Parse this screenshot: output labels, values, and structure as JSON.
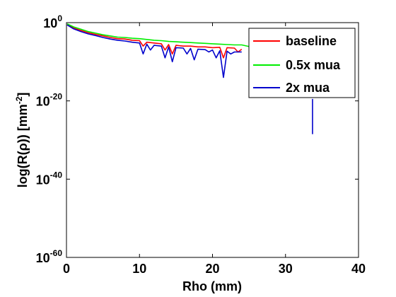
{
  "chart_data": {
    "type": "line",
    "title": "",
    "xlabel": "Rho (mm)",
    "ylabel": "log(R(ρ)) [mm",
    "ylabel_unit_exponent": "-2",
    "ylabel_close": "]",
    "xlim": [
      0,
      40
    ],
    "y_log10_lim": [
      -60,
      0
    ],
    "y_scale": "log",
    "grid": false,
    "legend_position": "top-right",
    "x_ticks": [
      0,
      10,
      20,
      30,
      40
    ],
    "y_ticks": [
      {
        "base": "10",
        "exponent": "0",
        "value": 0
      },
      {
        "base": "10",
        "exponent": "-20",
        "value": -20
      },
      {
        "base": "10",
        "exponent": "-40",
        "value": -40
      },
      {
        "base": "10",
        "exponent": "-60",
        "value": -60
      }
    ],
    "series": [
      {
        "name": "baseline",
        "color": "#ff0000",
        "points": [
          [
            0.1,
            -0.5
          ],
          [
            1,
            -1.4
          ],
          [
            2,
            -2
          ],
          [
            3,
            -2.6
          ],
          [
            4,
            -3
          ],
          [
            5,
            -3.4
          ],
          [
            6,
            -3.8
          ],
          [
            7,
            -4.1
          ],
          [
            8,
            -4.2
          ],
          [
            9,
            -4.5
          ],
          [
            10,
            -4.6
          ],
          [
            10.5,
            -6
          ],
          [
            11,
            -5
          ],
          [
            12,
            -5.2
          ],
          [
            13,
            -5.4
          ],
          [
            13.5,
            -7
          ],
          [
            14,
            -5.6
          ],
          [
            14.5,
            -8
          ],
          [
            15,
            -5.8
          ],
          [
            16,
            -6
          ],
          [
            17,
            -6
          ],
          [
            18,
            -6.2
          ],
          [
            19,
            -6.2
          ],
          [
            20,
            -6.4
          ],
          [
            21,
            -6.3
          ],
          [
            21.5,
            -9
          ],
          [
            22,
            -6.4
          ],
          [
            23,
            -6.5
          ],
          [
            23.5,
            -7.5
          ],
          [
            24,
            -6.8
          ]
        ]
      },
      {
        "name": "0.5x mua",
        "color": "#00ee00",
        "points": [
          [
            0.1,
            -0.3
          ],
          [
            1,
            -1.1
          ],
          [
            2,
            -1.7
          ],
          [
            3,
            -2.3
          ],
          [
            4,
            -2.7
          ],
          [
            5,
            -3.1
          ],
          [
            6,
            -3.4
          ],
          [
            7,
            -3.7
          ],
          [
            8,
            -3.8
          ],
          [
            9,
            -4
          ],
          [
            10,
            -4.1
          ],
          [
            11,
            -4.3
          ],
          [
            12,
            -4.5
          ],
          [
            13,
            -4.6
          ],
          [
            14,
            -4.8
          ],
          [
            15,
            -4.9
          ],
          [
            16,
            -5
          ],
          [
            17,
            -5.1
          ],
          [
            18,
            -5.2
          ],
          [
            19,
            -5.3
          ],
          [
            20,
            -5.4
          ],
          [
            21,
            -5.5
          ],
          [
            22,
            -5.6
          ],
          [
            23,
            -5.7
          ],
          [
            24,
            -5.7
          ],
          [
            26,
            -6.5
          ],
          [
            27,
            -7
          ],
          [
            28,
            -6
          ],
          [
            30,
            -6.3
          ],
          [
            31,
            -6.2
          ],
          [
            32,
            -6.5
          ],
          [
            33,
            -6.4
          ],
          [
            34,
            -6.5
          ]
        ]
      },
      {
        "name": "2x mua",
        "color": "#0000cc",
        "points": [
          [
            0.1,
            -0.6
          ],
          [
            1,
            -1.6
          ],
          [
            2,
            -2.3
          ],
          [
            3,
            -2.9
          ],
          [
            4,
            -3.3
          ],
          [
            5,
            -3.8
          ],
          [
            6,
            -4.2
          ],
          [
            7,
            -4.5
          ],
          [
            8,
            -4.7
          ],
          [
            9,
            -5
          ],
          [
            10,
            -5.2
          ],
          [
            10.5,
            -8
          ],
          [
            11,
            -5.5
          ],
          [
            11.5,
            -7
          ],
          [
            12,
            -5.8
          ],
          [
            13,
            -6
          ],
          [
            13.5,
            -9
          ],
          [
            14,
            -6.2
          ],
          [
            14.5,
            -10
          ],
          [
            15,
            -6.4
          ],
          [
            16,
            -6.5
          ],
          [
            16.5,
            -8
          ],
          [
            17,
            -6.6
          ],
          [
            17.5,
            -9.5
          ],
          [
            18,
            -6.8
          ],
          [
            19,
            -6.9
          ],
          [
            19.5,
            -7.5
          ],
          [
            20,
            -7
          ],
          [
            20.5,
            -9
          ],
          [
            21,
            -7.2
          ],
          [
            21.5,
            -14
          ],
          [
            22,
            -7.3
          ],
          [
            22.5,
            -8
          ],
          [
            23,
            -7.5
          ],
          [
            24,
            -7.5
          ]
        ]
      }
    ],
    "isolated_segments": [
      {
        "series": "2x mua",
        "x": 33.7,
        "y_from": -19.5,
        "y_to": -28.5
      }
    ]
  }
}
